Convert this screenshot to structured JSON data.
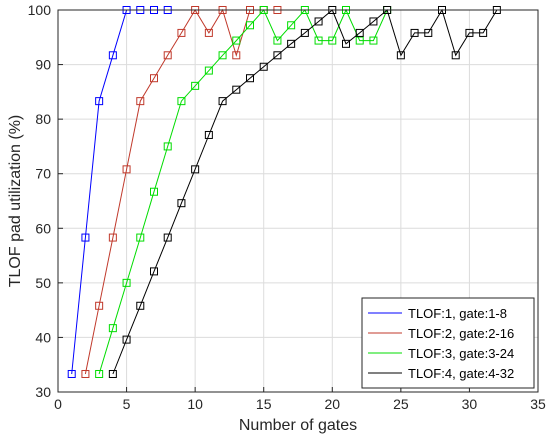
{
  "chart_data": {
    "type": "line",
    "title": "",
    "xlabel": "Number of gates",
    "ylabel": "TLOF pad utilization (%)",
    "xlim": [
      0,
      35
    ],
    "ylim": [
      30,
      100
    ],
    "xticks": [
      0,
      5,
      10,
      15,
      20,
      25,
      30,
      35
    ],
    "yticks": [
      30,
      40,
      50,
      60,
      70,
      80,
      90,
      100
    ],
    "grid": true,
    "legend_position": "bottom-right",
    "marker": "square",
    "series": [
      {
        "name": "TLOF:1, gate:1-8",
        "color": "#0000ff",
        "x": [
          1,
          2,
          3,
          4,
          5,
          6,
          7,
          8
        ],
        "y": [
          33.3,
          58.3,
          83.3,
          91.7,
          100,
          100,
          100,
          100
        ]
      },
      {
        "name": "TLOF:2, gate:2-16",
        "color": "#c0392b",
        "x": [
          2,
          3,
          4,
          5,
          6,
          7,
          8,
          9,
          10,
          11,
          12,
          13,
          14,
          15,
          16
        ],
        "y": [
          33.3,
          45.8,
          58.3,
          70.8,
          83.3,
          87.5,
          91.7,
          95.8,
          100,
          95.8,
          100,
          91.7,
          100,
          100,
          100
        ]
      },
      {
        "name": "TLOF:3, gate:3-24",
        "color": "#00dd00",
        "x": [
          3,
          4,
          5,
          6,
          7,
          8,
          9,
          10,
          11,
          12,
          13,
          14,
          15,
          16,
          17,
          18,
          19,
          20,
          21,
          22,
          23,
          24
        ],
        "y": [
          33.3,
          41.7,
          50,
          58.3,
          66.7,
          75,
          83.3,
          86.1,
          88.9,
          91.7,
          94.4,
          97.2,
          100,
          94.4,
          97.2,
          100,
          94.4,
          94.4,
          100,
          94.4,
          94.4,
          100
        ]
      },
      {
        "name": "TLOF:4, gate:4-32",
        "color": "#000000",
        "x": [
          4,
          5,
          6,
          7,
          8,
          9,
          10,
          11,
          12,
          13,
          14,
          15,
          16,
          17,
          18,
          19,
          20,
          21,
          22,
          23,
          24,
          25,
          26,
          27,
          28,
          29,
          30,
          31,
          32
        ],
        "y": [
          33.3,
          39.6,
          45.8,
          52.1,
          58.3,
          64.6,
          70.8,
          77.1,
          83.3,
          85.4,
          87.5,
          89.6,
          91.7,
          93.8,
          95.8,
          97.9,
          100,
          93.8,
          95.8,
          97.9,
          100,
          91.7,
          95.8,
          95.8,
          100,
          91.7,
          95.8,
          95.8,
          100
        ]
      }
    ]
  }
}
